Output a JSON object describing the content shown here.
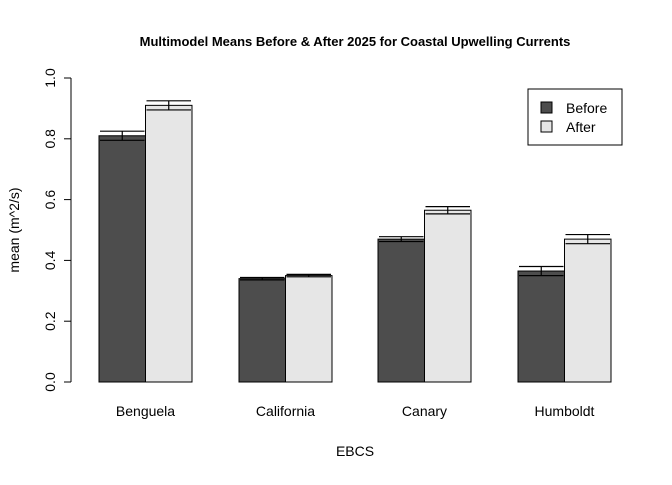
{
  "chart_data": {
    "type": "bar",
    "title": "Multimodel Means Before & After 2025 for Coastal Upwelling Currents",
    "xlabel": "EBCS",
    "ylabel": "mean (m^2/s)",
    "ylim": [
      0,
      1.0
    ],
    "yticks": [
      "0.0",
      "0.2",
      "0.4",
      "0.6",
      "0.8",
      "1.0"
    ],
    "categories": [
      "Benguela",
      "California",
      "Canary",
      "Humboldt"
    ],
    "series": [
      {
        "name": "Before",
        "color": "#4d4d4d",
        "values": [
          0.81,
          0.34,
          0.47,
          0.365
        ],
        "errors": [
          0.015,
          0.004,
          0.008,
          0.015
        ]
      },
      {
        "name": "After",
        "color": "#e6e6e6",
        "values": [
          0.91,
          0.35,
          0.565,
          0.47
        ],
        "errors": [
          0.015,
          0.004,
          0.012,
          0.015
        ]
      }
    ],
    "grid": false,
    "legend_position": "top-right",
    "error_bars": true
  }
}
